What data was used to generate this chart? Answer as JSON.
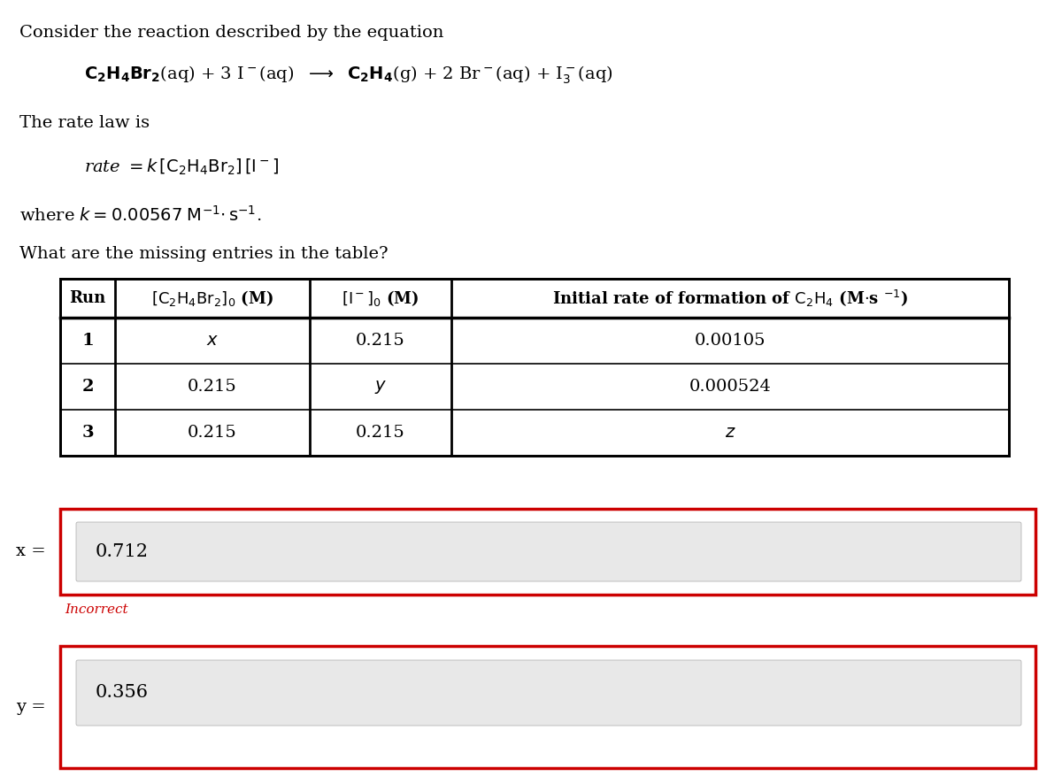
{
  "title_text": "Consider the reaction described by the equation",
  "rate_law_label": "The rate law is",
  "k_line": "where k = 0.00567 M⁻¹· s⁻¹.",
  "question": "What are the missing entries in the table?",
  "table_rows": [
    [
      "1",
      "x",
      "0.215",
      "0.00105"
    ],
    [
      "2",
      "0.215",
      "y",
      "0.000524"
    ],
    [
      "3",
      "0.215",
      "0.215",
      "z"
    ]
  ],
  "x_label": "x =",
  "x_value": "0.712",
  "x_incorrect": "Incorrect",
  "y_label": "y =",
  "y_value": "0.356",
  "bg_color": "#f0f0f0",
  "inner_box_color": "#e8e8e8",
  "box_border_incorrect": "#cc0000",
  "incorrect_color": "#cc0000",
  "text_color": "#000000",
  "title_fontsize": 14,
  "body_fontsize": 14,
  "eq_fontsize": 14,
  "table_header_fontsize": 13,
  "table_body_fontsize": 13,
  "label_fontsize": 14
}
